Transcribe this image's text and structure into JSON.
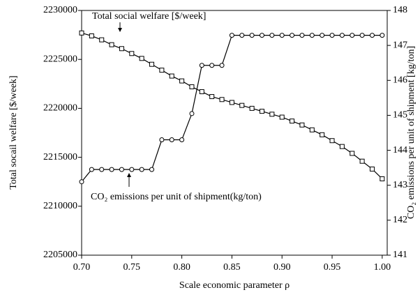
{
  "chart_data": {
    "type": "line",
    "x_label": "Scale economic parameter ρ",
    "y_label": "Total socail welfare [$/week]",
    "y2_label": "CO₂ emissions per unit of shipment [kg/ton]",
    "x": [
      0.7,
      0.71,
      0.72,
      0.73,
      0.74,
      0.75,
      0.76,
      0.77,
      0.78,
      0.79,
      0.8,
      0.81,
      0.82,
      0.83,
      0.84,
      0.85,
      0.86,
      0.87,
      0.88,
      0.89,
      0.9,
      0.91,
      0.92,
      0.93,
      0.94,
      0.95,
      0.96,
      0.97,
      0.98,
      0.99,
      1.0
    ],
    "xlim": [
      0.7,
      1.005
    ],
    "xticks": [
      {
        "value": 0.7,
        "label": "0.70"
      },
      0.75,
      {
        "value": 0.8,
        "label": "0.80"
      },
      0.85,
      {
        "value": 0.9,
        "label": "0.90"
      },
      0.95,
      {
        "value": 1.0,
        "label": "1.00"
      }
    ],
    "ylim": [
      2205000,
      2230000
    ],
    "yticks": [
      2205000,
      2210000,
      2215000,
      2220000,
      2225000,
      2230000
    ],
    "y2lim": [
      141,
      148
    ],
    "y2ticks": [
      141,
      142,
      143,
      144,
      145,
      146,
      147,
      148
    ],
    "series": [
      {
        "name": "Total  social welfare [$/week]",
        "color": "#000000",
        "marker": "square",
        "values": [
          2227700,
          2227400,
          2227000,
          2226500,
          2226100,
          2225600,
          2225100,
          2224500,
          2223900,
          2223300,
          2222800,
          2222200,
          2221700,
          2221200,
          2220900,
          2220600,
          2220300,
          2220000,
          2219700,
          2219400,
          2219100,
          2218700,
          2218300,
          2217800,
          2217300,
          2216700,
          2216100,
          2215400,
          2214600,
          2213800,
          2212800
        ]
      },
      {
        "name": "CO₂ emissions per unit of shipment(kg/ton)",
        "color": "#000000",
        "marker": "circle",
        "axis": "y2",
        "values": [
          143.1,
          143.45,
          143.45,
          143.45,
          143.45,
          143.45,
          143.45,
          143.45,
          144.3,
          144.3,
          144.3,
          145.05,
          146.43,
          146.43,
          146.43,
          147.29,
          147.29,
          147.29,
          147.29,
          147.29,
          147.29,
          147.29,
          147.29,
          147.29,
          147.29,
          147.29,
          147.29,
          147.29,
          147.29,
          147.29,
          147.29
        ]
      }
    ]
  }
}
